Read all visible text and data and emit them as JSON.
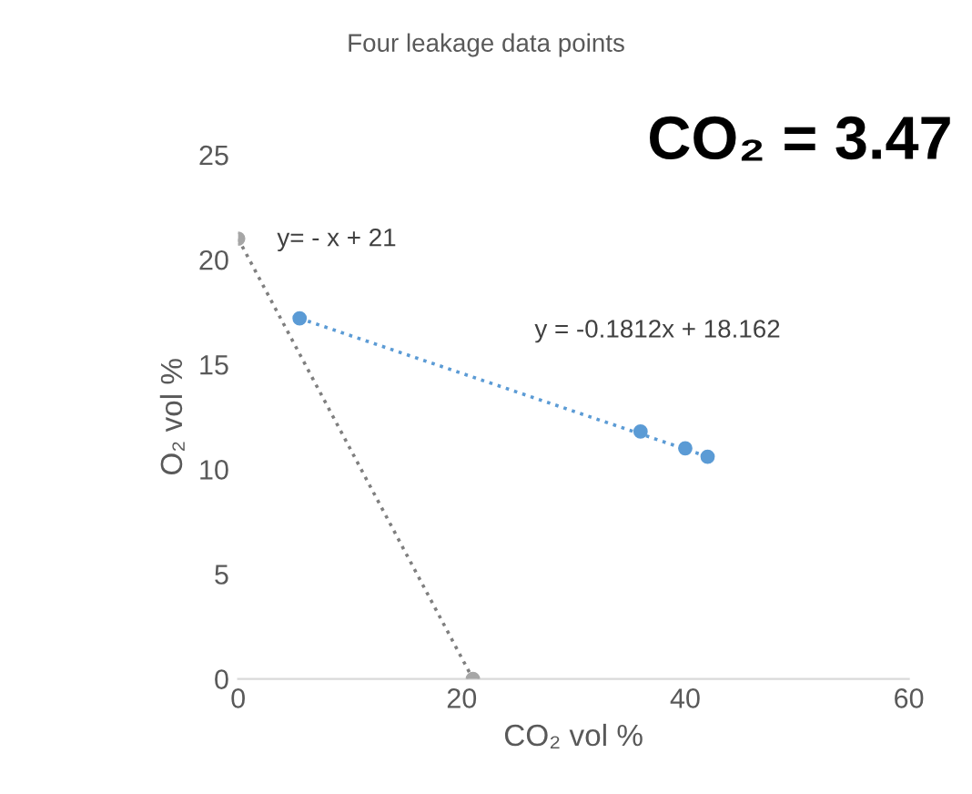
{
  "chart_data": {
    "type": "scatter",
    "title": "Four leakage data points",
    "xlabel": "CO₂ vol %",
    "ylabel": "O₂ vol %",
    "xlim": [
      0,
      60
    ],
    "xticks": [
      0,
      20,
      40,
      60
    ],
    "ylim": [
      0,
      25
    ],
    "yticks": [
      0,
      5,
      10,
      15,
      20,
      25
    ],
    "grid": false,
    "legend": false,
    "marker": "circle",
    "series": [
      {
        "color": "#a6a6a6",
        "x": [
          0,
          21
        ],
        "values": [
          21,
          0
        ]
      },
      {
        "color": "#5b9bd5",
        "x": [
          5.5,
          36,
          40,
          42
        ],
        "values": [
          17.2,
          11.8,
          11.0,
          10.6
        ]
      },
      {
        "type": "line",
        "color": "#7f7f7f",
        "marker": "none",
        "line_style": "dotted",
        "x": [
          0,
          21
        ],
        "values": [
          21,
          0
        ]
      },
      {
        "type": "line",
        "color": "#5b9bd5",
        "marker": "none",
        "line_style": "dotted",
        "x": [
          5.5,
          42
        ],
        "values": [
          17.2,
          10.6
        ]
      }
    ],
    "annotations": [
      "y= - x + 21",
      "y = -0.1812x + 18.162",
      "CO₂ = 3.47"
    ]
  }
}
